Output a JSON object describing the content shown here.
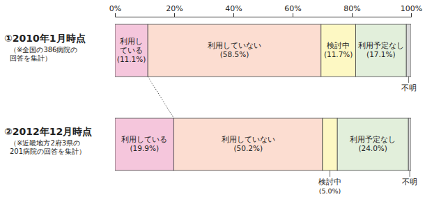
{
  "chart_data": {
    "type": "bar",
    "orientation": "horizontal",
    "stacked": true,
    "data_labels": true,
    "categories": [
      "①2010年1月時点",
      "②2012年12月時点"
    ],
    "category_notes": [
      [
        "（※全国の386病院の",
        "回答を集計）"
      ],
      [
        "（※近畿地方2府3県の",
        "201病院の回答を集計）"
      ]
    ],
    "xlim": [
      0,
      100
    ],
    "xticks": [
      {
        "value": 0,
        "label": "0%"
      },
      {
        "value": 20,
        "label": "20%"
      },
      {
        "value": 40,
        "label": "40%"
      },
      {
        "value": 60,
        "label": "60%"
      },
      {
        "value": 80,
        "label": "80%"
      },
      {
        "value": 100,
        "label": "100%"
      }
    ],
    "series": [
      {
        "name": "利用している",
        "color": "#f5c6dc",
        "values": [
          11.1,
          19.9
        ],
        "value_labels": [
          "(11.1%)",
          "(19.9%)"
        ]
      },
      {
        "name": "利用していない",
        "color": "#fcddd1",
        "values": [
          58.5,
          50.2
        ],
        "value_labels": [
          "(58.5%)",
          "(50.2%)"
        ]
      },
      {
        "name": "検討中",
        "color": "#fdf8c3",
        "values": [
          11.7,
          5.0
        ],
        "value_labels": [
          "(11.7%)",
          "(5.0%)"
        ]
      },
      {
        "name": "利用予定なし",
        "color": "#e2efdb",
        "values": [
          17.1,
          24.0
        ],
        "value_labels": [
          "(17.1%)",
          "(24.0%)"
        ]
      },
      {
        "name": "不明",
        "color": "#d9d9d9",
        "values": [
          1.6,
          0.9
        ],
        "value_labels": [
          null,
          null
        ]
      }
    ]
  }
}
